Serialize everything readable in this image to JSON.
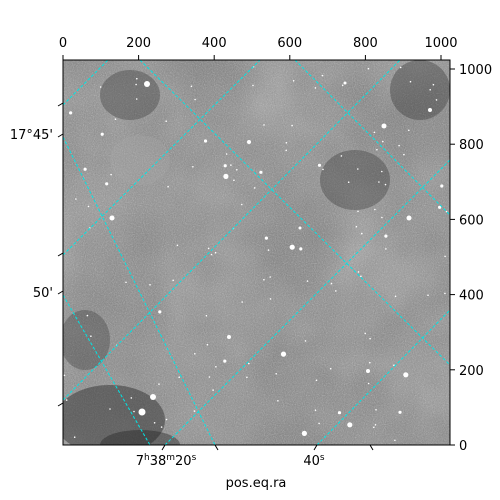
{
  "figure": {
    "xlabel": "pos.eq.ra",
    "ylabel": "",
    "grid_color": "#00e5e5",
    "image_colormap": "gray"
  },
  "pixel_axes": {
    "top": {
      "ticks": [
        "0",
        "200",
        "400",
        "600",
        "800",
        "1000"
      ],
      "range": [
        0,
        1024
      ]
    },
    "right": {
      "ticks": [
        "0",
        "200",
        "400",
        "600",
        "800",
        "1000"
      ],
      "range": [
        0,
        1024
      ]
    }
  },
  "world_axes": {
    "bottom": [
      {
        "text": "7",
        "sup_h": "h",
        "mid": "38",
        "sup_m": "m",
        "tail": "20",
        "sup_s": "s"
      },
      {
        "text": "40",
        "sup_s": "s"
      }
    ],
    "left": [
      "17°45'",
      "50'"
    ]
  }
}
